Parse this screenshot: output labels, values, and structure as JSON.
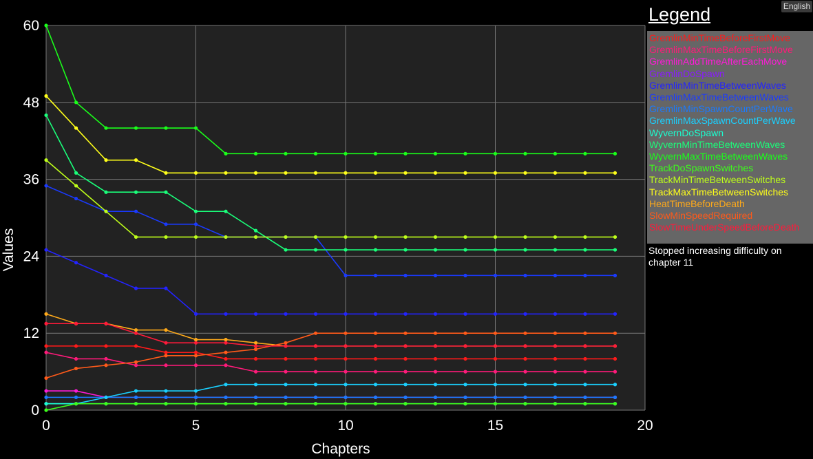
{
  "language_button": "English",
  "legend": {
    "title": "Legend",
    "note": "Stopped increasing difficulty on chapter 11"
  },
  "chart_data": {
    "type": "line",
    "xlabel": "Chapters",
    "ylabel": "Values",
    "xlim": [
      0,
      20
    ],
    "ylim": [
      0,
      60
    ],
    "xticks": [
      0,
      5,
      10,
      15,
      20
    ],
    "yticks": [
      0,
      12,
      24,
      36,
      48,
      60
    ],
    "grid": true,
    "legend_placement": "right",
    "x": [
      0,
      1,
      2,
      3,
      4,
      5,
      6,
      7,
      8,
      9,
      10,
      11,
      12,
      13,
      14,
      15,
      16,
      17,
      18,
      19
    ],
    "series": [
      {
        "name": "GremlinMinTimeBeforeFirstMove",
        "color": "#ff1a1a",
        "values": [
          10,
          10,
          10,
          10,
          9,
          9,
          8,
          8,
          8,
          8,
          8,
          8,
          8,
          8,
          8,
          8,
          8,
          8,
          8,
          8
        ]
      },
      {
        "name": "GremlinMaxTimeBeforeFirstMove",
        "color": "#ff1a7a",
        "values": [
          9,
          8,
          8,
          7,
          7,
          7,
          7,
          6,
          6,
          6,
          6,
          6,
          6,
          6,
          6,
          6,
          6,
          6,
          6,
          6
        ]
      },
      {
        "name": "GremlinAddTimeAfterEachMove",
        "color": "#ff1ad8",
        "values": [
          3,
          3,
          2,
          2,
          2,
          2,
          2,
          2,
          2,
          2,
          2,
          2,
          2,
          2,
          2,
          2,
          2,
          2,
          2,
          2
        ]
      },
      {
        "name": "GremlinDoSpawn",
        "color": "#8a1aff",
        "values": [
          1,
          1,
          1,
          1,
          1,
          1,
          1,
          1,
          1,
          1,
          1,
          1,
          1,
          1,
          1,
          1,
          1,
          1,
          1,
          1
        ]
      },
      {
        "name": "GremlinMinTimeBetweenWaves",
        "color": "#2323ff",
        "values": [
          25,
          23,
          21,
          19,
          19,
          15,
          15,
          15,
          15,
          15,
          15,
          15,
          15,
          15,
          15,
          15,
          15,
          15,
          15,
          15
        ]
      },
      {
        "name": "GremlinMaxTimeBetweenWaves",
        "color": "#1a3aff",
        "values": [
          35,
          33,
          31,
          31,
          29,
          29,
          27,
          27,
          27,
          27,
          21,
          21,
          21,
          21,
          21,
          21,
          21,
          21,
          21,
          21
        ]
      },
      {
        "name": "GremlinMinSpawnCountPerWave",
        "color": "#1a7aff",
        "values": [
          2,
          2,
          2,
          2,
          2,
          2,
          2,
          2,
          2,
          2,
          2,
          2,
          2,
          2,
          2,
          2,
          2,
          2,
          2,
          2
        ]
      },
      {
        "name": "GremlinMaxSpawnCountPerWave",
        "color": "#1ad0ff",
        "values": [
          1,
          1,
          2,
          3,
          3,
          3,
          4,
          4,
          4,
          4,
          4,
          4,
          4,
          4,
          4,
          4,
          4,
          4,
          4,
          4
        ]
      },
      {
        "name": "WyvernDoSpawn",
        "color": "#1affd0",
        "values": [
          1,
          1,
          1,
          1,
          1,
          1,
          1,
          1,
          1,
          1,
          1,
          1,
          1,
          1,
          1,
          1,
          1,
          1,
          1,
          1
        ]
      },
      {
        "name": "WyvernMinTimeBetweenWaves",
        "color": "#1aff7a",
        "values": [
          46,
          37,
          34,
          34,
          34,
          31,
          31,
          28,
          25,
          25,
          25,
          25,
          25,
          25,
          25,
          25,
          25,
          25,
          25,
          25
        ]
      },
      {
        "name": "WyvernMaxTimeBetweenWaves",
        "color": "#1aff1a",
        "values": [
          60,
          48,
          44,
          44,
          44,
          44,
          40,
          40,
          40,
          40,
          40,
          40,
          40,
          40,
          40,
          40,
          40,
          40,
          40,
          40
        ]
      },
      {
        "name": "TrackDoSpawnSwitches",
        "color": "#3cff1a",
        "values": [
          0,
          1,
          1,
          1,
          1,
          1,
          1,
          1,
          1,
          1,
          1,
          1,
          1,
          1,
          1,
          1,
          1,
          1,
          1,
          1
        ]
      },
      {
        "name": "TrackMinTimeBetweenSwitches",
        "color": "#bfff1a",
        "values": [
          39,
          35,
          31,
          27,
          27,
          27,
          27,
          27,
          27,
          27,
          27,
          27,
          27,
          27,
          27,
          27,
          27,
          27,
          27,
          27
        ]
      },
      {
        "name": "TrackMaxTimeBetweenSwitches",
        "color": "#ffff1a",
        "values": [
          49,
          44,
          39,
          39,
          37,
          37,
          37,
          37,
          37,
          37,
          37,
          37,
          37,
          37,
          37,
          37,
          37,
          37,
          37,
          37
        ]
      },
      {
        "name": "HeatTimeBeforeDeath",
        "color": "#ffaa1a",
        "values": [
          15,
          13.5,
          13.5,
          12.5,
          12.5,
          11,
          11,
          10.5,
          10,
          10,
          10,
          10,
          10,
          10,
          10,
          10,
          10,
          10,
          10,
          10
        ]
      },
      {
        "name": "SlowMinSpeedRequired",
        "color": "#ff5a1a",
        "values": [
          5,
          6.5,
          7,
          7.5,
          8.5,
          8.5,
          9,
          9.5,
          10.5,
          12,
          12,
          12,
          12,
          12,
          12,
          12,
          12,
          12,
          12,
          12
        ]
      },
      {
        "name": "SlowTimeUnderSpeedBeforeDeath",
        "color": "#ff1a3a",
        "values": [
          13.5,
          13.5,
          13.5,
          12,
          10.5,
          10.5,
          10.5,
          10,
          10,
          10,
          10,
          10,
          10,
          10,
          10,
          10,
          10,
          10,
          10,
          10
        ]
      }
    ]
  }
}
